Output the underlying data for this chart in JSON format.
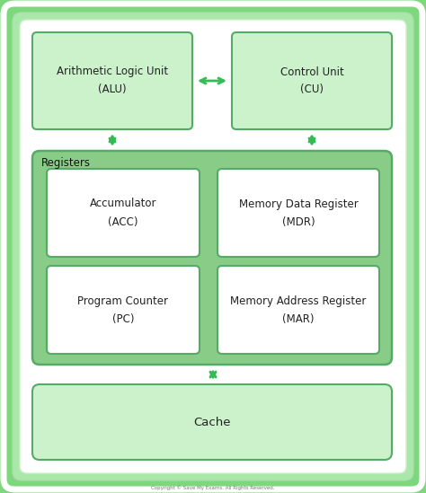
{
  "fig_w": 4.74,
  "fig_h": 5.49,
  "dpi": 100,
  "bg_outer": "#7dd87d",
  "bg_mid_green": "#88dd88",
  "bg_white": "#ffffff",
  "box_light_fill": "#ccf2cc",
  "box_mid_fill": "#88cc88",
  "box_white_fill": "#ffffff",
  "box_border": "#55aa66",
  "arrow_color": "#33bb55",
  "text_color": "#222222",
  "registers_label": "Registers",
  "alu_line1": "Arithmetic Logic Unit",
  "alu_line2": "(ALU)",
  "cu_line1": "Control Unit",
  "cu_line2": "(CU)",
  "acc_line1": "Accumulator",
  "acc_line2": "(ACC)",
  "mdr_line1": "Memory Data Register",
  "mdr_line2": "(MDR)",
  "pc_line1": "Program Counter",
  "pc_line2": "(PC)",
  "mar_line1": "Memory Address Register",
  "mar_line2": "(MAR)",
  "cache_label": "Cache",
  "copyright": "Copyright © Save My Exams. All Rights Reserved."
}
